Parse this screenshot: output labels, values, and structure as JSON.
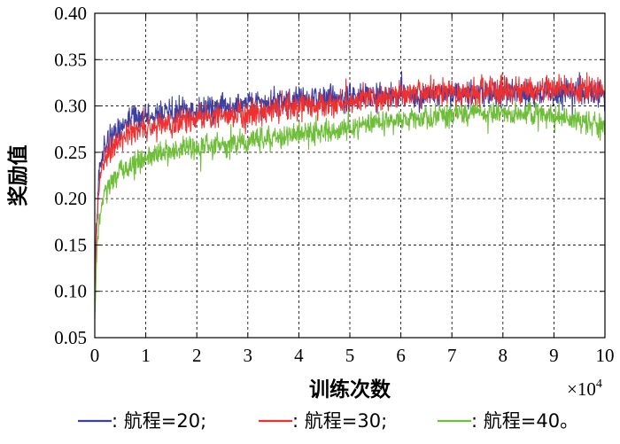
{
  "chart_data": {
    "type": "line",
    "xlabel": "训练次数",
    "ylabel": "奖励值",
    "x_multiplier": {
      "base": "×10",
      "exponent": "4"
    },
    "xlim": [
      0,
      10
    ],
    "ylim": [
      0.05,
      0.4
    ],
    "x_ticks": [
      0,
      1,
      2,
      3,
      4,
      5,
      6,
      7,
      8,
      9,
      10
    ],
    "y_ticks": [
      0.05,
      0.1,
      0.15,
      0.2,
      0.25,
      0.3,
      0.35,
      0.4
    ],
    "x_tick_labels": [
      "0",
      "1",
      "2",
      "3",
      "4",
      "5",
      "6",
      "7",
      "8",
      "9",
      "10"
    ],
    "y_tick_labels": [
      "0.05",
      "0.10",
      "0.15",
      "0.20",
      "0.25",
      "0.30",
      "0.35",
      "0.40"
    ],
    "grid": true,
    "legend_position": "bottom",
    "series": [
      {
        "name": "航程=20",
        "legend_label": "—: 航程=20;",
        "color": "#3f3f9f",
        "noise": 0.01,
        "x": [
          0,
          0.05,
          0.1,
          0.2,
          0.4,
          0.7,
          1,
          1.5,
          2,
          2.5,
          3,
          3.5,
          4,
          4.5,
          5,
          5.5,
          6,
          6.5,
          7,
          7.5,
          8,
          8.5,
          9,
          9.5,
          10
        ],
        "y": [
          0.12,
          0.2,
          0.235,
          0.255,
          0.27,
          0.283,
          0.29,
          0.293,
          0.295,
          0.298,
          0.302,
          0.305,
          0.307,
          0.309,
          0.31,
          0.311,
          0.312,
          0.312,
          0.313,
          0.313,
          0.314,
          0.314,
          0.314,
          0.314,
          0.313
        ]
      },
      {
        "name": "航程=30",
        "legend_label": "—: 航程=30;",
        "color": "#ee3030",
        "noise": 0.01,
        "x": [
          0,
          0.05,
          0.1,
          0.2,
          0.4,
          0.7,
          1,
          1.5,
          2,
          2.5,
          3,
          3.5,
          4,
          4.5,
          5,
          5.5,
          6,
          6.5,
          7,
          7.5,
          8,
          8.5,
          9,
          9.5,
          10
        ],
        "y": [
          0.1,
          0.18,
          0.22,
          0.245,
          0.26,
          0.27,
          0.277,
          0.283,
          0.287,
          0.29,
          0.292,
          0.296,
          0.3,
          0.302,
          0.305,
          0.308,
          0.311,
          0.313,
          0.315,
          0.316,
          0.317,
          0.318,
          0.318,
          0.319,
          0.318
        ]
      },
      {
        "name": "航程=40",
        "legend_label": "—: 航程=40。",
        "color": "#6fbe3a",
        "noise": 0.009,
        "x": [
          0,
          0.05,
          0.1,
          0.2,
          0.4,
          0.7,
          1,
          1.5,
          2,
          2.5,
          3,
          3.5,
          4,
          4.5,
          5,
          5.5,
          6,
          6.5,
          7,
          7.5,
          8,
          8.5,
          9,
          9.5,
          10
        ],
        "y": [
          0.07,
          0.15,
          0.185,
          0.205,
          0.222,
          0.235,
          0.243,
          0.25,
          0.255,
          0.258,
          0.262,
          0.266,
          0.27,
          0.273,
          0.277,
          0.281,
          0.285,
          0.288,
          0.29,
          0.292,
          0.293,
          0.292,
          0.288,
          0.284,
          0.278
        ]
      }
    ]
  }
}
